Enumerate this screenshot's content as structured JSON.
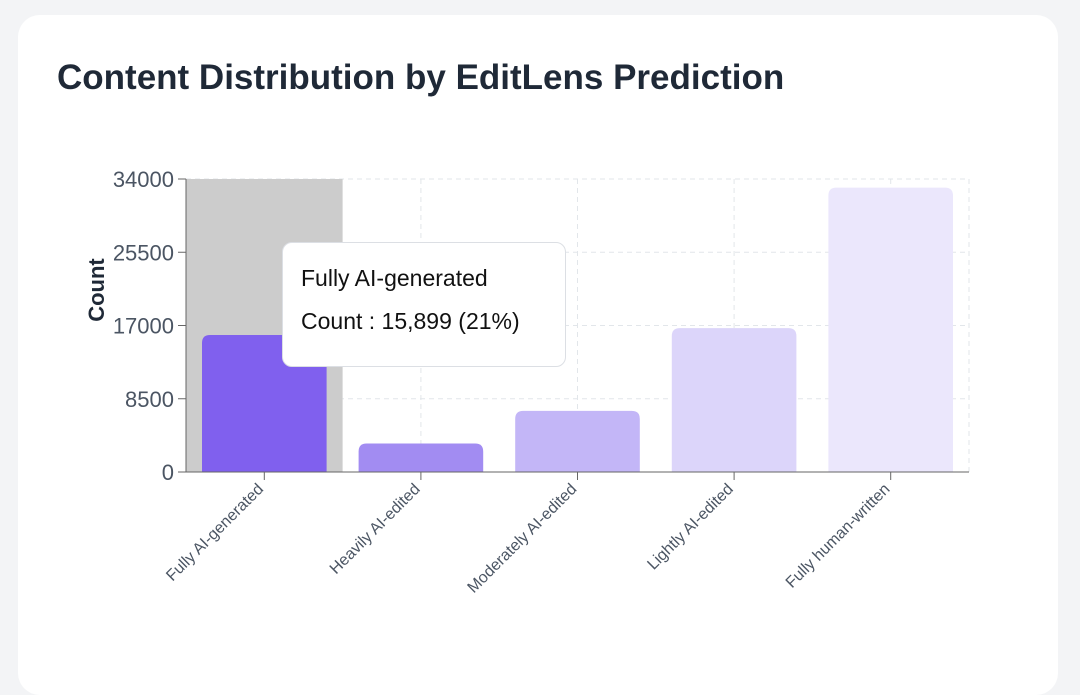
{
  "title": "Content Distribution by EditLens Prediction",
  "chart_data": {
    "type": "bar",
    "title": "Content Distribution by EditLens Prediction",
    "xlabel": "",
    "ylabel": "Count",
    "ylim": [
      0,
      34000
    ],
    "yticks": [
      "0",
      "8500",
      "17000",
      "25500",
      "34000"
    ],
    "grid": true,
    "categories": [
      "Fully AI-generated",
      "Heavily AI-edited",
      "Moderately AI-edited",
      "Lightly AI-edited",
      "Fully human-written"
    ],
    "values": [
      15899,
      3300,
      7100,
      16700,
      33000
    ],
    "colors": [
      "#8060ee",
      "#a28cf2",
      "#c3b6f7",
      "#dcd5fa",
      "#ebe7fc"
    ],
    "highlighted_index": 0
  },
  "tooltip": {
    "label": "Fully AI-generated",
    "value_text": "Count : 15,899 (21%)"
  }
}
